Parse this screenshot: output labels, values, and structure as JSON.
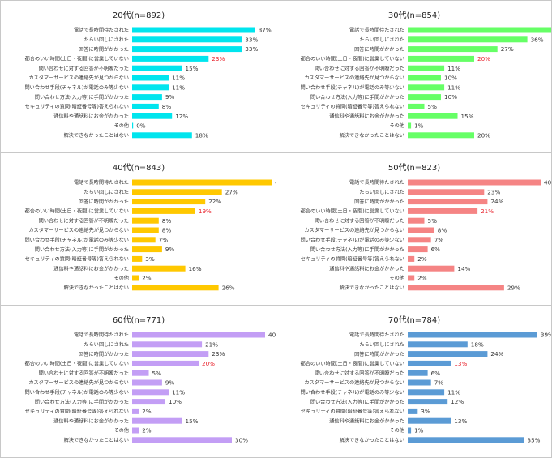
{
  "categories": [
    "電話で長時間待たされた",
    "たらい回しにされた",
    "回答に時間がかかった",
    "都合のいい時間(土日・夜間)に営業していない",
    "問い合わせに対する回答が不明瞭だった",
    "カスタマーサービスの連絡先が見つからない",
    "問い合わせ手段(チャネル)が電話のみ等少ない",
    "問い合わせ方法(入力等)に手間がかかった",
    "セキュリティの質問(暗証番号等)答えられない",
    "通信料や通話料にお金がかかった",
    "その他",
    "解決できなかったことはない"
  ],
  "highlight_index": 3,
  "highlight_color": "#e8202a",
  "chart_data": [
    {
      "type": "bar",
      "title": "20代(n=892)",
      "color": "#00e5ee",
      "categories_ref": "categories",
      "values": [
        37,
        33,
        33,
        23,
        15,
        11,
        11,
        9,
        8,
        12,
        0,
        18
      ]
    },
    {
      "type": "bar",
      "title": "30代(n=854)",
      "color": "#66ff66",
      "categories_ref": "categories",
      "values": [
        46,
        36,
        27,
        20,
        11,
        10,
        11,
        10,
        5,
        15,
        1,
        20
      ]
    },
    {
      "type": "bar",
      "title": "40代(n=843)",
      "color": "#ffc800",
      "categories_ref": "categories",
      "values": [
        42,
        27,
        22,
        19,
        8,
        8,
        7,
        9,
        3,
        16,
        2,
        26
      ]
    },
    {
      "type": "bar",
      "title": "50代(n=823)",
      "color": "#f58484",
      "categories_ref": "categories",
      "values": [
        40,
        23,
        24,
        21,
        5,
        8,
        7,
        6,
        2,
        14,
        2,
        29
      ]
    },
    {
      "type": "bar",
      "title": "60代(n=771)",
      "color": "#c39ef5",
      "categories_ref": "categories",
      "values": [
        40,
        21,
        23,
        20,
        5,
        9,
        11,
        10,
        2,
        15,
        2,
        30
      ]
    },
    {
      "type": "bar",
      "title": "70代(n=784)",
      "color": "#5b9bd5",
      "categories_ref": "categories",
      "values": [
        39,
        18,
        24,
        13,
        6,
        7,
        11,
        12,
        3,
        13,
        1,
        35
      ]
    }
  ]
}
